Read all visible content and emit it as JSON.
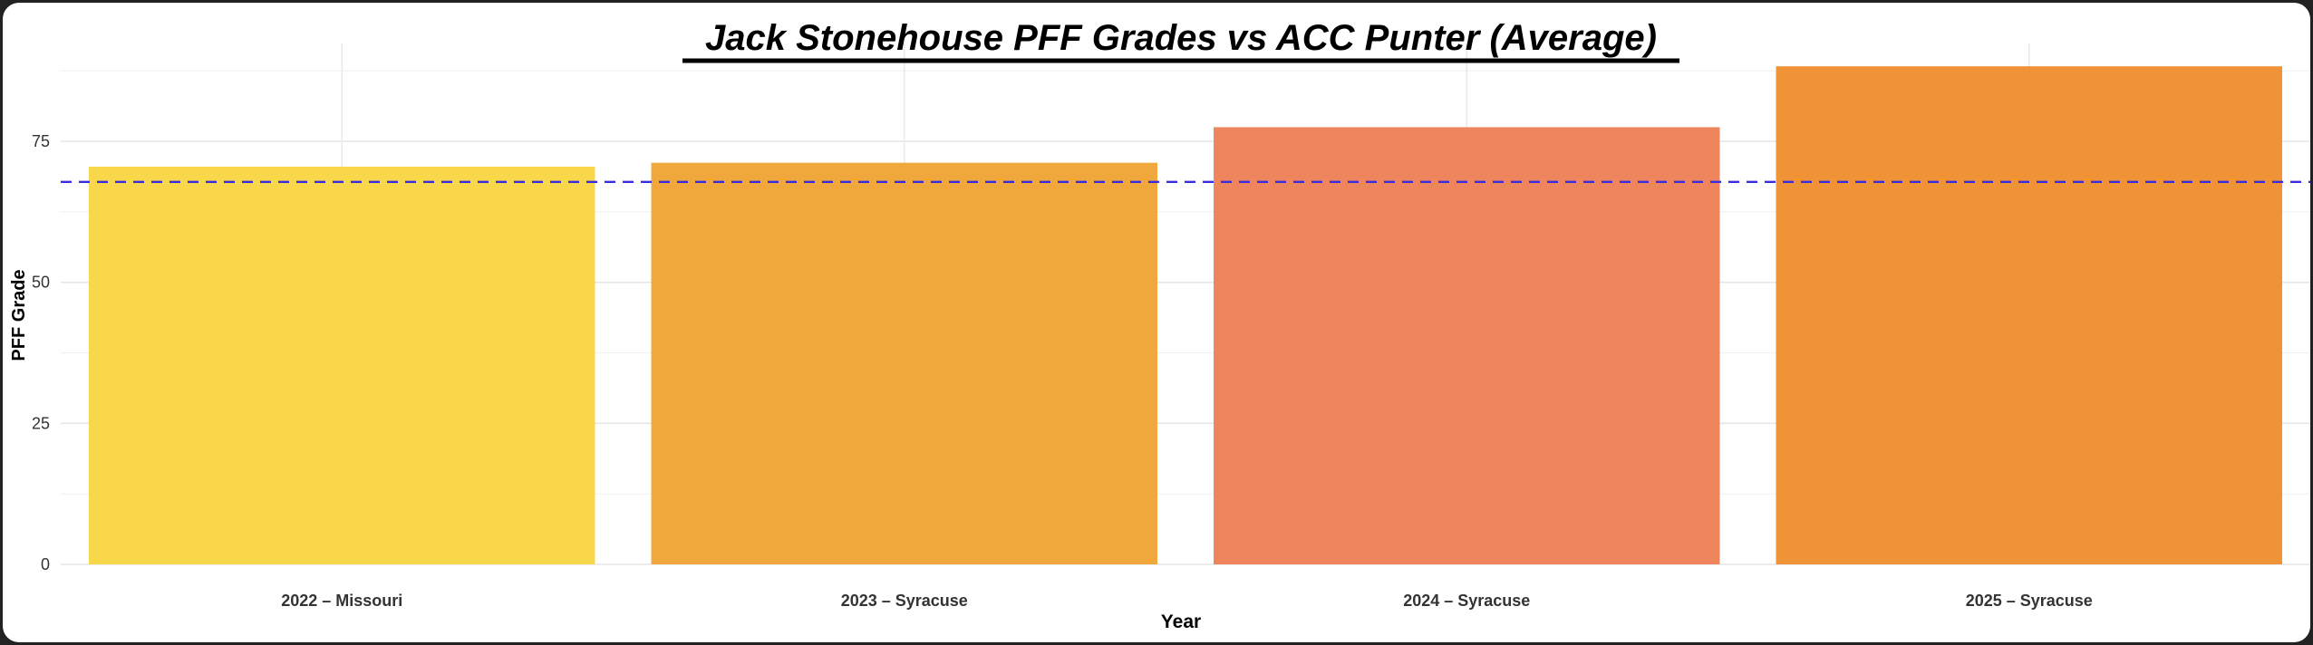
{
  "chart_data": {
    "type": "bar",
    "title": "Jack Stonehouse PFF Grades vs ACC Punter (Average)",
    "xlabel": "Year",
    "ylabel": "PFF Grade",
    "categories": [
      "2022 – Missouri",
      "2023 – Syracuse",
      "2024 – Syracuse",
      "2025 – Syracuse"
    ],
    "values": [
      70.5,
      71.2,
      77.5,
      88.3
    ],
    "bar_colors": [
      "#F8D74A",
      "#F0A83C",
      "#EF855D",
      "#F09236"
    ],
    "reference_line": {
      "value": 67.8,
      "color": "#3B2BE0",
      "style": "dashed"
    },
    "ylim": [
      0,
      90
    ],
    "yticks": [
      0,
      25,
      50,
      75
    ],
    "grid": true
  }
}
